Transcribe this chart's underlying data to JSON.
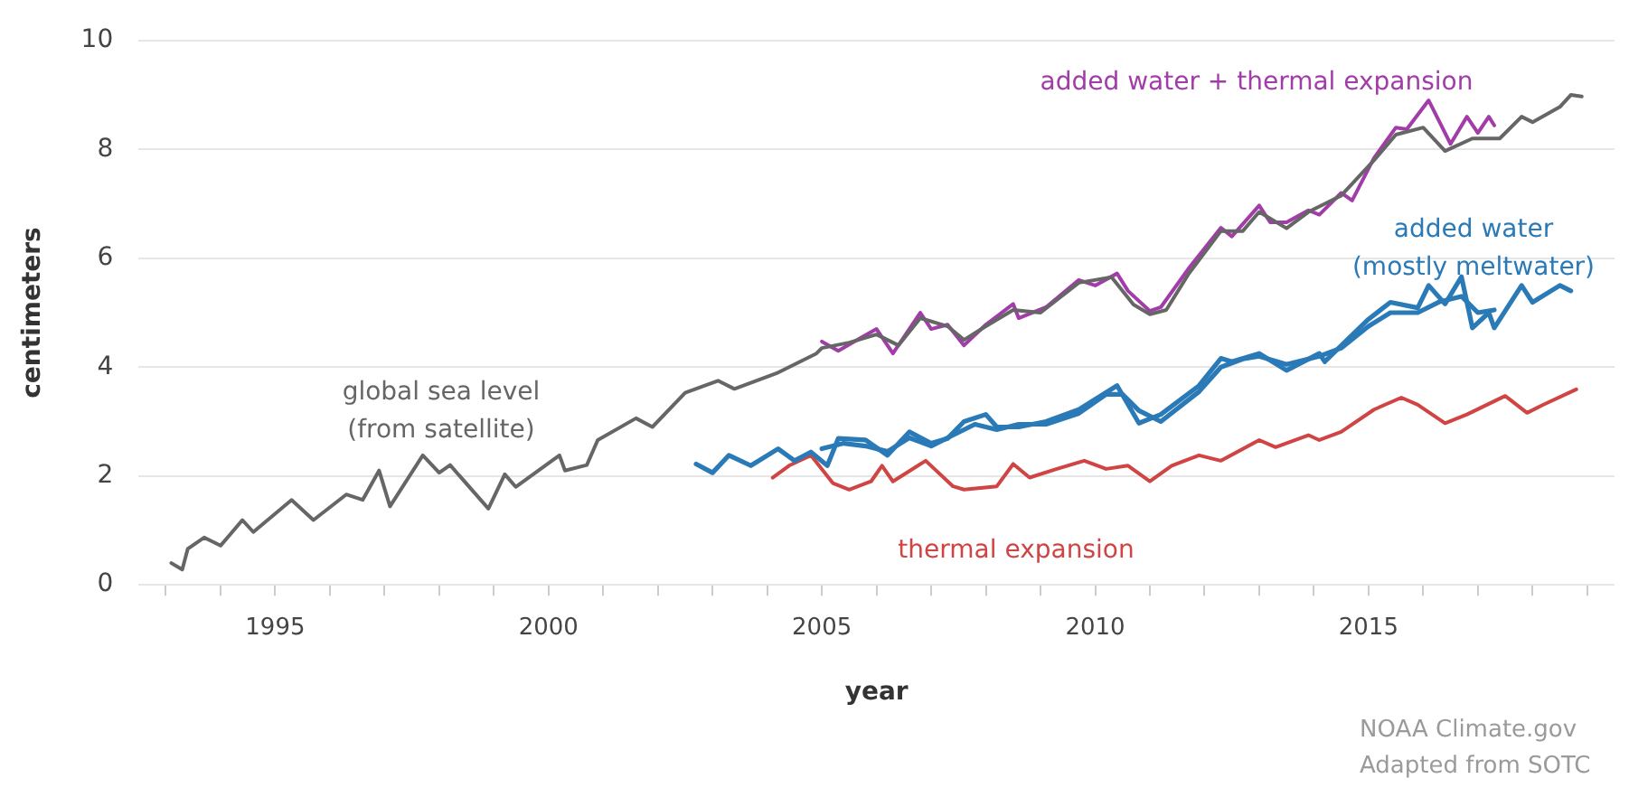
{
  "chart_data": {
    "type": "line",
    "xlabel": "year",
    "ylabel": "centimeters",
    "xlim": [
      1992.5,
      2019.5
    ],
    "ylim": [
      0,
      10
    ],
    "xticks": [
      {
        "value": 1993,
        "label": null
      },
      {
        "value": 1994,
        "label": null
      },
      1995,
      {
        "value": 1996,
        "label": null
      },
      {
        "value": 1997,
        "label": null
      },
      {
        "value": 1998,
        "label": null
      },
      {
        "value": 1999,
        "label": null
      },
      2000,
      {
        "value": 2001,
        "label": null
      },
      {
        "value": 2002,
        "label": null
      },
      {
        "value": 2003,
        "label": null
      },
      {
        "value": 2004,
        "label": null
      },
      2005,
      {
        "value": 2006,
        "label": null
      },
      {
        "value": 2007,
        "label": null
      },
      {
        "value": 2008,
        "label": null
      },
      {
        "value": 2009,
        "label": null
      },
      2010,
      {
        "value": 2011,
        "label": null
      },
      {
        "value": 2012,
        "label": null
      },
      {
        "value": 2013,
        "label": null
      },
      {
        "value": 2014,
        "label": null
      },
      2015,
      {
        "value": 2016,
        "label": null
      },
      {
        "value": 2017,
        "label": null
      },
      {
        "value": 2018,
        "label": null
      },
      {
        "value": 2019,
        "label": null
      }
    ],
    "yticks": [
      0,
      2,
      4,
      6,
      8,
      10
    ],
    "grid": "y",
    "legend": false,
    "marker": "none",
    "line_style": "solid",
    "series": [
      {
        "name": "global sea level (from satellite)",
        "color": "#666666",
        "x": [
          1993.1,
          1993.3,
          1993.4,
          1993.7,
          1994.0,
          1994.4,
          1994.6,
          1995.3,
          1995.7,
          1996.3,
          1996.6,
          1996.9,
          1997.1,
          1997.7,
          1998.0,
          1998.2,
          1998.9,
          1999.2,
          1999.4,
          2000.2,
          2000.3,
          2000.7,
          2000.9,
          2001.6,
          2001.9,
          2002.5,
          2003.1,
          2003.4,
          2004.2,
          2004.9,
          2005.0,
          2005.5,
          2006.0,
          2006.4,
          2006.8,
          2007.3,
          2007.6,
          2008.0,
          2008.5,
          2009.0,
          2009.7,
          2010.3,
          2010.7,
          2011.0,
          2011.3,
          2011.7,
          2012.3,
          2012.7,
          2013.0,
          2013.5,
          2013.9,
          2014.5,
          2015.1,
          2015.5,
          2016.0,
          2016.4,
          2016.9,
          2017.4,
          2017.8,
          2018.0,
          2018.5,
          2018.7,
          2018.9
        ],
        "values": [
          0.4,
          0.28,
          0.66,
          0.87,
          0.72,
          1.19,
          0.97,
          1.56,
          1.19,
          1.66,
          1.56,
          2.1,
          1.44,
          2.38,
          2.06,
          2.2,
          1.4,
          2.03,
          1.8,
          2.38,
          2.1,
          2.2,
          2.66,
          3.06,
          2.9,
          3.53,
          3.75,
          3.6,
          3.9,
          4.25,
          4.35,
          4.45,
          4.6,
          4.4,
          4.9,
          4.75,
          4.5,
          4.75,
          5.05,
          5.0,
          5.55,
          5.65,
          5.15,
          4.97,
          5.05,
          5.7,
          6.5,
          6.5,
          6.85,
          6.55,
          6.85,
          7.15,
          7.8,
          8.27,
          8.4,
          7.97,
          8.2,
          8.2,
          8.6,
          8.5,
          8.78,
          9.0,
          8.97
        ]
      },
      {
        "name": "added water + thermal expansion",
        "color": "#a23ca8",
        "x": [
          2005.0,
          2005.3,
          2005.7,
          2006.0,
          2006.3,
          2006.8,
          2007.0,
          2007.3,
          2007.6,
          2008.0,
          2008.5,
          2008.6,
          2009.1,
          2009.7,
          2010.0,
          2010.4,
          2010.6,
          2011.0,
          2011.2,
          2011.7,
          2012.3,
          2012.5,
          2013.0,
          2013.2,
          2013.5,
          2013.9,
          2014.1,
          2014.5,
          2014.7,
          2015.1,
          2015.5,
          2015.7,
          2016.1,
          2016.3,
          2016.5,
          2016.8,
          2017.0,
          2017.2,
          2017.3
        ],
        "values": [
          4.47,
          4.3,
          4.53,
          4.7,
          4.25,
          5.0,
          4.7,
          4.78,
          4.4,
          4.78,
          5.16,
          4.9,
          5.1,
          5.6,
          5.5,
          5.72,
          5.4,
          5.03,
          5.1,
          5.8,
          6.56,
          6.4,
          6.97,
          6.66,
          6.66,
          6.88,
          6.8,
          7.2,
          7.06,
          7.84,
          8.4,
          8.37,
          8.9,
          8.5,
          8.1,
          8.6,
          8.3,
          8.6,
          8.44
        ]
      },
      {
        "name": "added water (mostly meltwater)",
        "color": "#2a7ab8",
        "x": [
          2002.7,
          2003.0,
          2003.3,
          2003.7,
          2004.2,
          2004.5,
          2004.8,
          2005.1,
          2005.3,
          2005.8,
          2006.2,
          2006.6,
          2007.0,
          2007.3,
          2007.6,
          2008.0,
          2008.2,
          2008.6,
          2009.1,
          2009.7,
          2010.4,
          2010.8,
          2011.2,
          2011.9,
          2012.3,
          2012.5,
          2013.0,
          2013.5,
          2014.1,
          2014.2,
          2015.0,
          2015.4,
          2015.9,
          2016.1,
          2016.4,
          2016.7,
          2016.9,
          2017.2,
          2017.3,
          2017.8,
          2018.0,
          2018.5,
          2018.7
        ],
        "values": [
          2.22,
          2.06,
          2.38,
          2.19,
          2.5,
          2.28,
          2.44,
          2.19,
          2.69,
          2.66,
          2.38,
          2.81,
          2.6,
          2.69,
          3.0,
          3.13,
          2.9,
          2.9,
          3.0,
          3.22,
          3.66,
          2.97,
          3.13,
          3.66,
          4.16,
          4.1,
          4.25,
          3.94,
          4.25,
          4.1,
          4.88,
          5.19,
          5.09,
          5.5,
          5.16,
          5.66,
          4.72,
          5.0,
          4.72,
          5.5,
          5.19,
          5.5,
          5.4
        ]
      },
      {
        "name": "thermal expansion",
        "color": "#d04444",
        "x": [
          2004.1,
          2004.4,
          2004.8,
          2005.2,
          2005.5,
          2005.9,
          2006.1,
          2006.3,
          2006.9,
          2007.4,
          2007.6,
          2008.2,
          2008.5,
          2008.8,
          2009.3,
          2009.8,
          2010.2,
          2010.6,
          2011.0,
          2011.4,
          2011.9,
          2012.3,
          2013.0,
          2013.3,
          2013.9,
          2014.1,
          2014.5,
          2015.1,
          2015.6,
          2015.9,
          2016.4,
          2016.8,
          2017.5,
          2017.9,
          2018.2,
          2018.8
        ],
        "values": [
          1.97,
          2.19,
          2.38,
          1.87,
          1.75,
          1.9,
          2.19,
          1.9,
          2.28,
          1.81,
          1.75,
          1.81,
          2.22,
          1.97,
          2.13,
          2.28,
          2.13,
          2.19,
          1.9,
          2.19,
          2.38,
          2.28,
          2.66,
          2.53,
          2.75,
          2.66,
          2.81,
          3.22,
          3.44,
          3.31,
          2.97,
          3.13,
          3.47,
          3.16,
          3.31,
          3.59
        ]
      },
      {
        "color": "#2a7ab8",
        "x": [
          2005.0,
          2005.4,
          2005.8,
          2006.2,
          2006.6,
          2007.0,
          2007.4,
          2007.8,
          2008.2,
          2008.6,
          2009.1,
          2009.7,
          2010.2,
          2010.5,
          2010.8,
          2011.2,
          2011.9,
          2012.3,
          2012.7,
          2013.0,
          2013.5,
          2014.1,
          2014.5,
          2015.0,
          2015.4,
          2015.9,
          2016.3,
          2016.7,
          2017.0,
          2017.3
        ],
        "values": [
          2.5,
          2.6,
          2.55,
          2.45,
          2.7,
          2.55,
          2.75,
          2.95,
          2.85,
          2.95,
          2.95,
          3.15,
          3.5,
          3.5,
          3.2,
          3.0,
          3.55,
          4.0,
          4.15,
          4.2,
          4.05,
          4.2,
          4.35,
          4.75,
          5.0,
          5.0,
          5.2,
          5.3,
          5.0,
          5.05
        ]
      }
    ],
    "annotations": [
      "NOAA Climate.gov",
      "Adapted from SOTC"
    ]
  }
}
